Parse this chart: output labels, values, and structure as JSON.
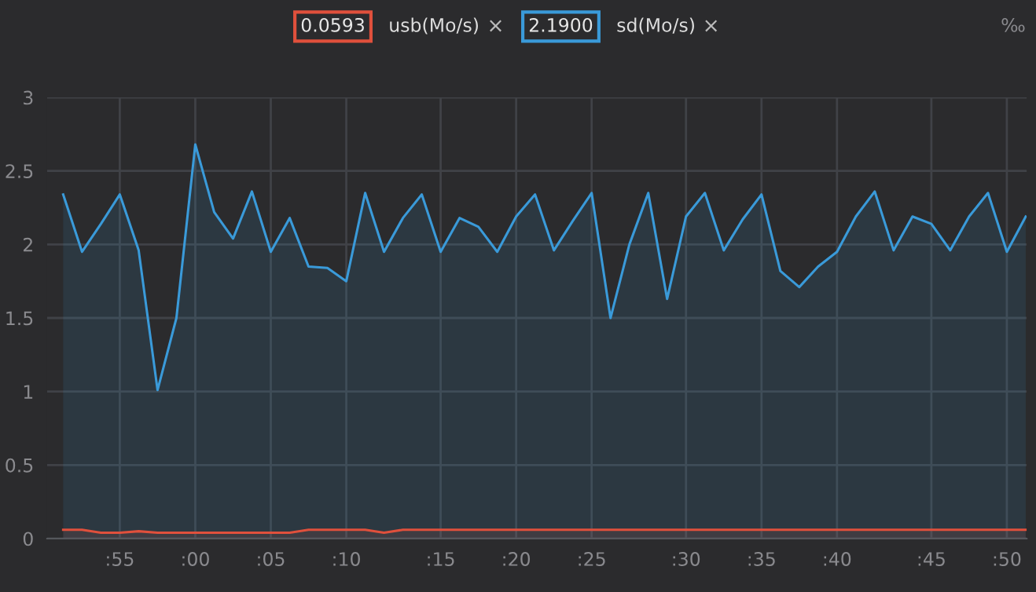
{
  "chart_data": {
    "type": "area",
    "categories": [
      null,
      null,
      null,
      ":55",
      null,
      null,
      null,
      ":00",
      null,
      null,
      null,
      ":05",
      null,
      null,
      null,
      ":10",
      null,
      null,
      null,
      null,
      ":15",
      null,
      null,
      null,
      ":20",
      null,
      null,
      null,
      ":25",
      null,
      null,
      null,
      null,
      ":30",
      null,
      null,
      null,
      ":35",
      null,
      null,
      null,
      ":40",
      null,
      null,
      null,
      null,
      ":45",
      null,
      null,
      null,
      ":50",
      null
    ],
    "series": [
      {
        "name": "usb(Mo/s)",
        "color": "#e0503c",
        "values": [
          0.06,
          0.06,
          0.04,
          0.04,
          0.05,
          0.04,
          0.04,
          0.04,
          0.04,
          0.04,
          0.04,
          0.04,
          0.04,
          0.06,
          0.06,
          0.06,
          0.06,
          0.04,
          0.06,
          0.06,
          0.06,
          0.06,
          0.06,
          0.06,
          0.06,
          0.06,
          0.06,
          0.06,
          0.06,
          0.06,
          0.06,
          0.06,
          0.06,
          0.06,
          0.06,
          0.06,
          0.06,
          0.06,
          0.06,
          0.06,
          0.06,
          0.06,
          0.06,
          0.06,
          0.06,
          0.06,
          0.06,
          0.06,
          0.06,
          0.06,
          0.06,
          0.06
        ]
      },
      {
        "name": "sd(Mo/s)",
        "color": "#3a9ad9",
        "values": [
          2.34,
          1.95,
          2.14,
          2.34,
          1.96,
          1.01,
          1.5,
          2.68,
          2.22,
          2.04,
          2.36,
          1.95,
          2.18,
          1.85,
          1.84,
          1.75,
          2.35,
          1.95,
          2.18,
          2.34,
          1.95,
          2.18,
          2.12,
          1.95,
          2.19,
          2.34,
          1.96,
          2.16,
          2.35,
          1.5,
          2.0,
          2.35,
          1.63,
          2.19,
          2.35,
          1.96,
          2.17,
          2.34,
          1.82,
          1.71,
          1.85,
          1.95,
          2.19,
          2.36,
          1.96,
          2.19,
          2.14,
          1.96,
          2.19,
          2.35,
          1.95,
          2.19
        ]
      }
    ],
    "ylim": [
      0,
      3
    ],
    "yticks": [
      0,
      0.5,
      1,
      1.5,
      2,
      2.5,
      3
    ],
    "grid": true,
    "legend": "top",
    "annotations": [
      "0.0593",
      "×",
      "2.1900",
      "×",
      "‰"
    ]
  }
}
